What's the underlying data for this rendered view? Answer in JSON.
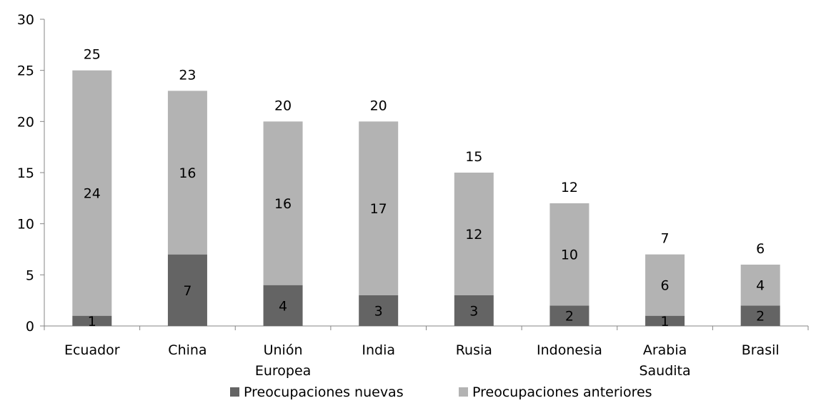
{
  "chart_data": {
    "type": "bar",
    "stacked": true,
    "categories": [
      [
        "Ecuador"
      ],
      [
        "China"
      ],
      [
        "Unión",
        "Europea"
      ],
      [
        "India"
      ],
      [
        "Rusia"
      ],
      [
        "Indonesia"
      ],
      [
        "Arabia",
        "Saudita"
      ],
      [
        "Brasil"
      ]
    ],
    "series": [
      {
        "name": "Preocupaciones nuevas",
        "color": "#646464",
        "values": [
          1,
          7,
          4,
          3,
          3,
          2,
          1,
          2
        ]
      },
      {
        "name": "Preocupaciones anteriores",
        "color": "#b3b3b3",
        "values": [
          24,
          16,
          16,
          17,
          12,
          10,
          6,
          4
        ]
      }
    ],
    "totals": [
      25,
      23,
      20,
      20,
      15,
      12,
      7,
      6
    ],
    "ylim": [
      0,
      30
    ],
    "yticks": [
      0,
      5,
      10,
      15,
      20,
      25,
      30
    ],
    "grid": false,
    "legend_position": "bottom"
  }
}
